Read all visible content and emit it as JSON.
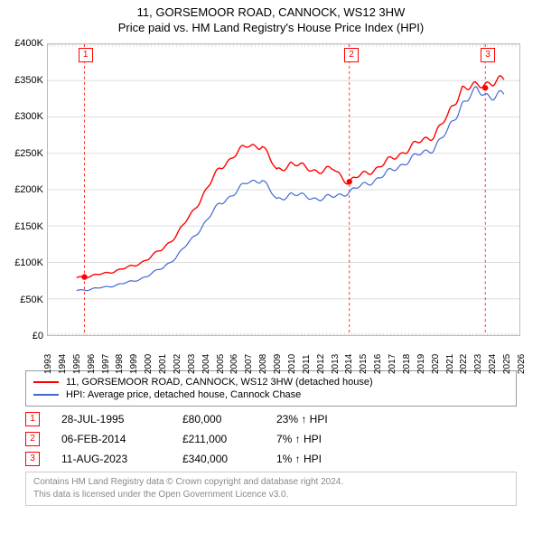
{
  "title_line1": "11, GORSEMOOR ROAD, CANNOCK, WS12 3HW",
  "title_line2": "Price paid vs. HM Land Registry's House Price Index (HPI)",
  "chart": {
    "type": "line",
    "background_color": "#ffffff",
    "grid_color": "#dddddd",
    "axis_color": "#bbbbbb",
    "label_fontsize": 11,
    "ylim": [
      0,
      400000
    ],
    "ytick_step": 50000,
    "ytick_labels": [
      "£0",
      "£50K",
      "£100K",
      "£150K",
      "£200K",
      "£250K",
      "£300K",
      "£350K",
      "£400K"
    ],
    "x_years": [
      1993,
      1994,
      1995,
      1996,
      1997,
      1998,
      1999,
      2000,
      2001,
      2002,
      2003,
      2004,
      2005,
      2006,
      2007,
      2008,
      2009,
      2010,
      2011,
      2012,
      2013,
      2014,
      2015,
      2016,
      2017,
      2018,
      2019,
      2020,
      2021,
      2022,
      2023,
      2024,
      2025,
      2026
    ],
    "series": [
      {
        "name": "hpi",
        "color": "#4169d1",
        "line_width": 1.2,
        "values_by_year": {
          "1995": 62000,
          "1996": 63000,
          "1997": 66000,
          "1998": 70000,
          "1999": 74000,
          "2000": 82000,
          "2001": 92000,
          "2002": 108000,
          "2003": 130000,
          "2004": 155000,
          "2005": 180000,
          "2006": 195000,
          "2007": 210000,
          "2008": 215000,
          "2009": 185000,
          "2010": 195000,
          "2011": 190000,
          "2012": 188000,
          "2013": 190000,
          "2014": 197000,
          "2015": 205000,
          "2016": 215000,
          "2017": 225000,
          "2018": 238000,
          "2019": 248000,
          "2020": 258000,
          "2021": 280000,
          "2022": 320000,
          "2023": 335000,
          "2024": 330000
        }
      },
      {
        "name": "property",
        "color": "#ff0000",
        "line_width": 1.4,
        "values_by_year": {
          "1995": 80000,
          "1996": 81000,
          "1997": 85000,
          "1998": 90000,
          "1999": 95000,
          "2000": 105000,
          "2001": 118000,
          "2002": 138000,
          "2003": 165000,
          "2004": 198000,
          "2005": 228000,
          "2006": 248000,
          "2007": 260000,
          "2008": 262000,
          "2009": 225000,
          "2010": 237000,
          "2011": 230000,
          "2012": 226000,
          "2013": 228000,
          "2014": 211000,
          "2015": 220000,
          "2016": 230000,
          "2017": 241000,
          "2018": 254000,
          "2019": 265000,
          "2020": 276000,
          "2021": 300000,
          "2022": 342000,
          "2023": 340000,
          "2024": 350000
        }
      }
    ],
    "markers": [
      {
        "num": "1",
        "year": 1995.56,
        "value": 80000
      },
      {
        "num": "2",
        "year": 2014.1,
        "value": 211000
      },
      {
        "num": "3",
        "year": 2023.61,
        "value": 340000
      }
    ],
    "marker_line_color": "#ff0000",
    "marker_dot_color": "#ff0000"
  },
  "legend": {
    "items": [
      {
        "color": "#ff0000",
        "label": "11, GORSEMOOR ROAD, CANNOCK, WS12 3HW (detached house)"
      },
      {
        "color": "#4169d1",
        "label": "HPI: Average price, detached house, Cannock Chase"
      }
    ]
  },
  "sales": [
    {
      "num": "1",
      "date": "28-JUL-1995",
      "price": "£80,000",
      "pct": "23% ↑ HPI"
    },
    {
      "num": "2",
      "date": "06-FEB-2014",
      "price": "£211,000",
      "pct": "7% ↑ HPI"
    },
    {
      "num": "3",
      "date": "11-AUG-2023",
      "price": "£340,000",
      "pct": "1% ↑ HPI"
    }
  ],
  "attribution": {
    "line1": "Contains HM Land Registry data © Crown copyright and database right 2024.",
    "line2": "This data is licensed under the Open Government Licence v3.0."
  }
}
